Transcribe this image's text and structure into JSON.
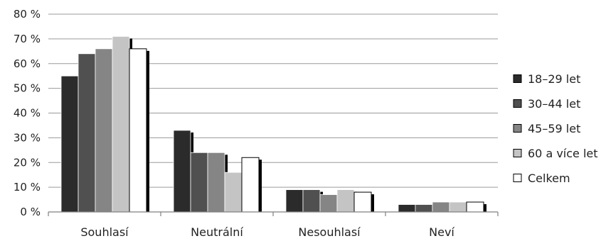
{
  "chart_data": {
    "type": "bar",
    "title": "",
    "xlabel": "",
    "ylabel": "",
    "categories": [
      "Souhlasí",
      "Neutrální",
      "Nesouhlasí",
      "Neví"
    ],
    "series": [
      {
        "name": "18–29 let",
        "values": [
          55,
          33,
          9,
          3
        ],
        "color": "#2b2b2b"
      },
      {
        "name": "30–44 let",
        "values": [
          64,
          24,
          9,
          3
        ],
        "color": "#505050"
      },
      {
        "name": "45–59 let",
        "values": [
          66,
          24,
          7,
          4
        ],
        "color": "#858585"
      },
      {
        "name": "60 a více let",
        "values": [
          71,
          16,
          9,
          4
        ],
        "color": "#c4c4c4"
      },
      {
        "name": "Celkem",
        "values": [
          66,
          22,
          8,
          4
        ],
        "color": "#ffffff"
      }
    ],
    "ylim": [
      0,
      80
    ],
    "yticks": [
      0,
      10,
      20,
      30,
      40,
      50,
      60,
      70,
      80
    ],
    "ytick_labels": [
      "0 %",
      "10 %",
      "20 %",
      "30 %",
      "40 %",
      "50 %",
      "60 %",
      "70 %",
      "80 %"
    ],
    "grid": true,
    "legend_position": "right",
    "shadow_color": "#000000"
  }
}
